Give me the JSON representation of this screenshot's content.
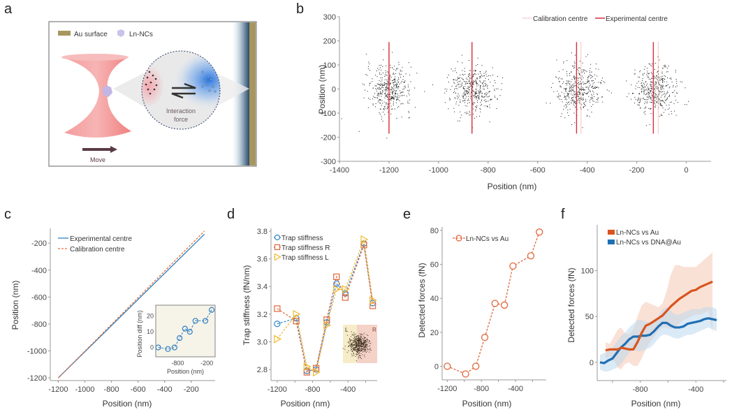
{
  "panels": {
    "a": {
      "letter": "a"
    },
    "b": {
      "letter": "b"
    },
    "c": {
      "letter": "c"
    },
    "d": {
      "letter": "d"
    },
    "e": {
      "letter": "e"
    },
    "f": {
      "letter": "f"
    }
  },
  "schematic": {
    "legend_au": "Au surface",
    "legend_ln": "Ln-NCs",
    "interaction_label_line1": "Interaction",
    "interaction_label_line2": "force",
    "move_label": "Move",
    "colors": {
      "au": "#a89660",
      "beam": "#f08a8a",
      "ln": "#c8c0e8",
      "blue": "#1e6fe0",
      "arrow": "#5a3a44"
    }
  },
  "chart_data": [
    {
      "id": "b",
      "type": "scatter",
      "title": "",
      "xlabel": "Position (nm)",
      "ylabel": "Position (nm)",
      "xlim": [
        -1400,
        100
      ],
      "ylim": [
        -300,
        300
      ],
      "xticks": [
        -1400,
        -1200,
        -1000,
        -800,
        -600,
        -400,
        -200,
        0
      ],
      "yticks": [
        -300,
        -200,
        -100,
        0,
        100,
        200,
        300
      ],
      "legend": {
        "placement": "top-right",
        "entries": [
          "Calibration centre",
          "Experimental centre"
        ]
      },
      "clusters": [
        {
          "center_x": -1200,
          "sd_x": 45,
          "sd_y": 50
        },
        {
          "center_x": -865,
          "sd_x": 45,
          "sd_y": 50
        },
        {
          "center_x": -435,
          "sd_x": 45,
          "sd_y": 50
        },
        {
          "center_x": -125,
          "sd_x": 45,
          "sd_y": 50
        }
      ],
      "calibration_centres": [
        -1200,
        -865,
        -425,
        -113
      ],
      "experimental_centres": [
        -1200,
        -865,
        -443,
        -133
      ],
      "centre_line_range": [
        -185,
        195
      ],
      "colors": {
        "points": "#111111",
        "experimental": "#d6303a",
        "calibration": "#f09aa0"
      }
    },
    {
      "id": "c",
      "type": "line",
      "xlabel": "Position (nm)",
      "ylabel": "Position (nm)",
      "xlim": [
        -1260,
        -20
      ],
      "ylim": [
        -1220,
        -90
      ],
      "xticks": [
        -1200,
        -1000,
        -800,
        -600,
        -400,
        -200
      ],
      "yticks": [
        -1200,
        -1000,
        -800,
        -600,
        -400,
        -200
      ],
      "legend": {
        "placement": "top-left",
        "entries": [
          "Experimental centre",
          "Calibration centre"
        ]
      },
      "series": [
        {
          "name": "Experimental centre",
          "x": [
            -1200,
            -100
          ],
          "y": [
            -1200,
            -133
          ],
          "color": "#2f7fc1",
          "style": "solid"
        },
        {
          "name": "Calibration centre",
          "x": [
            -1200,
            -100
          ],
          "y": [
            -1200,
            -110
          ],
          "color": "#e8703a",
          "style": "dashed"
        }
      ],
      "inset": {
        "xlabel": "Position (nm)",
        "ylabel": "Position diff (nm)",
        "xticks": [
          -800,
          -200
        ],
        "yticks": [
          0,
          10,
          20
        ],
        "xlim": [
          -1250,
          -30
        ],
        "ylim": [
          -6,
          27
        ],
        "x": [
          -1200,
          -1000,
          -865,
          -760,
          -650,
          -550,
          -435,
          -230,
          -100
        ],
        "y": [
          0,
          -1,
          0,
          6,
          12,
          10,
          17,
          17,
          24
        ],
        "color": "#2f7fc1",
        "background": "#f6f3e8"
      }
    },
    {
      "id": "d",
      "type": "line",
      "xlabel": "Position (nm)",
      "ylabel": "Trap stiffness (fN/nm)",
      "xlim": [
        -1270,
        -70
      ],
      "ylim": [
        2.72,
        3.82
      ],
      "xticks": [
        -1200,
        -800,
        -400
      ],
      "yticks": [
        2.8,
        3.0,
        3.2,
        3.4,
        3.6,
        3.8
      ],
      "legend": {
        "placement": "top-left",
        "entries": [
          "Trap stiffness",
          "Trap stiffness R",
          "Trap stiffness L"
        ]
      },
      "x": [
        -1200,
        -985,
        -865,
        -760,
        -640,
        -530,
        -430,
        -220,
        -120
      ],
      "series": [
        {
          "name": "Trap stiffness",
          "values": [
            3.13,
            3.17,
            2.79,
            2.8,
            3.14,
            3.42,
            3.35,
            3.71,
            3.28
          ],
          "color": "#2f86c8",
          "marker": "circle"
        },
        {
          "name": "Trap stiffness R",
          "values": [
            3.24,
            3.15,
            2.78,
            2.81,
            3.16,
            3.47,
            3.32,
            3.7,
            3.26
          ],
          "color": "#e0663a",
          "marker": "square"
        },
        {
          "name": "Trap stiffness L",
          "values": [
            3.02,
            3.2,
            2.82,
            2.78,
            3.12,
            3.38,
            3.38,
            3.74,
            3.3
          ],
          "color": "#f0b82e",
          "marker": "triangle-right"
        }
      ],
      "inset": {
        "label_left": "L",
        "label_right": "R"
      }
    },
    {
      "id": "e",
      "type": "line",
      "xlabel": "Position (nm)",
      "ylabel": "Detected forces (fN)",
      "xlim": [
        -1260,
        -40
      ],
      "ylim": [
        -8,
        82
      ],
      "xticks": [
        -1200,
        -800,
        -400
      ],
      "yticks": [
        0,
        20,
        40,
        60,
        80
      ],
      "legend": {
        "placement": "top-left",
        "entries": [
          "Ln-NCs vs Au"
        ]
      },
      "series": [
        {
          "name": "Ln-NCs vs Au",
          "x": [
            -1200,
            -985,
            -865,
            -760,
            -640,
            -530,
            -430,
            -220,
            -120
          ],
          "values": [
            0,
            -4.5,
            0,
            17,
            37,
            36,
            59,
            65,
            79
          ],
          "color": "#e0663a"
        }
      ]
    },
    {
      "id": "f",
      "type": "area",
      "xlabel": "Position (nm)",
      "ylabel": "Detected forces (fN)",
      "xlim": [
        -1110,
        -180
      ],
      "ylim": [
        -20,
        150
      ],
      "xticks": [
        -800,
        -400
      ],
      "yticks": [
        0,
        50,
        100
      ],
      "legend": {
        "placement": "top-left",
        "entries": [
          "Ln-NCs vs Au",
          "Ln-NCs vs DNA@Au"
        ]
      },
      "series": [
        {
          "name": "Ln-NCs vs Au",
          "color": "#d9541e",
          "x": [
            -1050,
            -1020,
            -990,
            -960,
            -940,
            -910,
            -880,
            -850,
            -820,
            -790,
            -760,
            -730,
            -700,
            -670,
            -640,
            -610,
            -580,
            -550,
            -520,
            -490,
            -460,
            -430,
            -400,
            -370,
            -340,
            -310,
            -280
          ],
          "values": [
            13,
            14,
            14,
            14,
            16,
            15,
            14,
            14,
            22,
            32,
            40,
            42,
            45,
            48,
            51,
            56,
            61,
            65,
            69,
            72,
            75,
            78,
            79,
            82,
            84,
            86,
            88
          ],
          "upper": [
            22,
            20,
            28,
            36,
            38,
            32,
            30,
            36,
            50,
            62,
            66,
            64,
            62,
            60,
            64,
            78,
            96,
            106,
            106,
            104,
            104,
            104,
            104,
            108,
            112,
            116,
            120
          ],
          "lower": [
            4,
            6,
            2,
            -6,
            -8,
            -2,
            0,
            -4,
            -4,
            4,
            14,
            22,
            28,
            34,
            38,
            38,
            36,
            38,
            42,
            46,
            48,
            50,
            52,
            52,
            54,
            56,
            32
          ]
        },
        {
          "name": "Ln-NCs vs DNA@Au",
          "color": "#1f6fb4",
          "x": [
            -1090,
            -1060,
            -1030,
            -1000,
            -970,
            -940,
            -910,
            -880,
            -850,
            -820,
            -790,
            -760,
            -730,
            -700,
            -670,
            -640,
            -610,
            -580,
            -550,
            -520,
            -490,
            -460,
            -430,
            -400,
            -370,
            -340,
            -310,
            -280,
            -250
          ],
          "values": [
            0,
            -1,
            2,
            4,
            10,
            16,
            20,
            25,
            28,
            28,
            29,
            29,
            30,
            34,
            39,
            43,
            43,
            40,
            38,
            38,
            39,
            42,
            43,
            44,
            45,
            47,
            48,
            47,
            46
          ],
          "upper": [
            8,
            10,
            12,
            16,
            22,
            28,
            32,
            38,
            42,
            46,
            46,
            44,
            44,
            46,
            50,
            58,
            60,
            56,
            52,
            52,
            54,
            56,
            58,
            58,
            58,
            60,
            60,
            60,
            58
          ],
          "lower": [
            -8,
            -10,
            -10,
            -8,
            -6,
            -2,
            4,
            10,
            14,
            12,
            12,
            14,
            16,
            20,
            26,
            30,
            30,
            28,
            26,
            26,
            28,
            30,
            30,
            32,
            34,
            36,
            38,
            36,
            34
          ]
        }
      ]
    }
  ]
}
